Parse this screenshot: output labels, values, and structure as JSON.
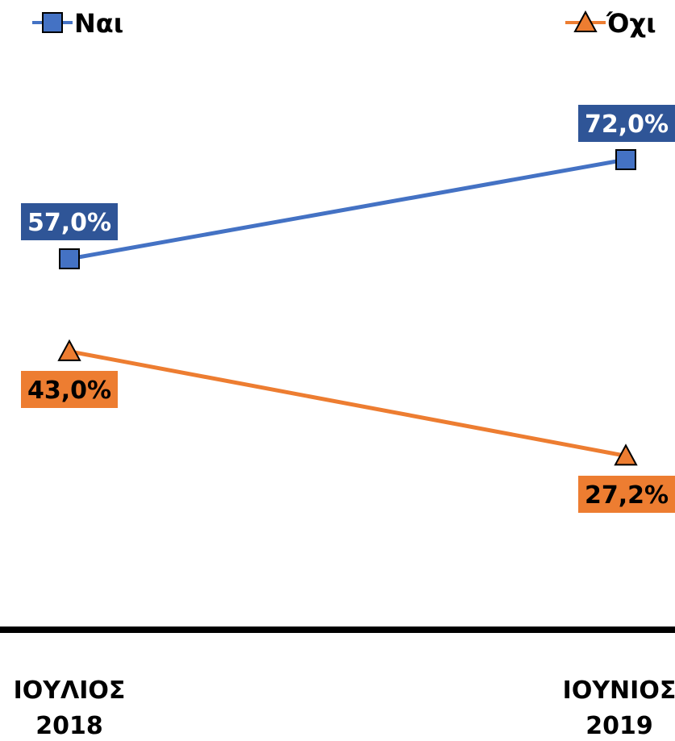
{
  "chart_data": {
    "type": "line",
    "categories": [
      [
        "ΙΟΥΛΙΟΣ",
        "2018"
      ],
      [
        "ΙΟΥΝΙΟΣ",
        "2019"
      ]
    ],
    "series": [
      {
        "name": "Ναι",
        "values": [
          57.0,
          72.0
        ],
        "labels": [
          "57,0%",
          "72,0%"
        ],
        "color": "#4472C4",
        "label_bg": "#2F5597",
        "label_fg": "#ffffff",
        "marker": "square"
      },
      {
        "name": "Όχι",
        "values": [
          43.0,
          27.2
        ],
        "labels": [
          "43,0%",
          "27,2%"
        ],
        "color": "#ED7D31",
        "label_bg": "#ED7D31",
        "label_fg": "#000000",
        "marker": "triangle"
      }
    ],
    "ylim": [
      0,
      100
    ],
    "grid": false,
    "legend": "top"
  }
}
